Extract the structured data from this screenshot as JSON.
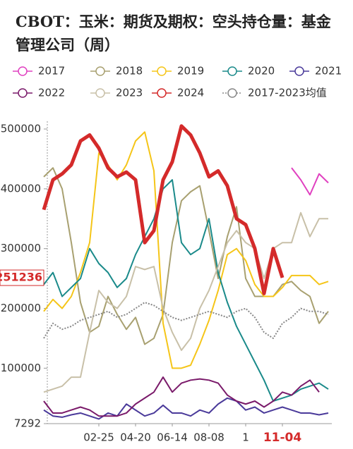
{
  "chart_data": {
    "type": "line",
    "title": "CBOT：玉米：期货及期权：空头持仓量：基金管理公司（周）",
    "categories": [
      null,
      null,
      null,
      null,
      null,
      null,
      "02-25",
      null,
      null,
      null,
      "04-20",
      null,
      null,
      null,
      "06-14",
      null,
      null,
      null,
      "08-08",
      null,
      null,
      null,
      "1",
      null,
      null,
      null,
      "11-04",
      null,
      null,
      null,
      null,
      null
    ],
    "ylim": [
      7292,
      513000
    ],
    "yticks": [
      7292,
      100000,
      200000,
      300000,
      400000,
      500000
    ],
    "series": [
      {
        "name": "2017",
        "color": "#e040c0",
        "values": [
          null,
          null,
          null,
          null,
          null,
          null,
          null,
          null,
          null,
          null,
          null,
          null,
          null,
          null,
          null,
          null,
          null,
          null,
          null,
          null,
          null,
          null,
          null,
          null,
          null,
          null,
          null,
          435000,
          415000,
          390000,
          425000,
          410000
        ]
      },
      {
        "name": "2018",
        "color": "#a8a070",
        "values": [
          420000,
          435000,
          400000,
          310000,
          210000,
          160000,
          170000,
          220000,
          190000,
          165000,
          185000,
          140000,
          150000,
          190000,
          310000,
          380000,
          395000,
          405000,
          330000,
          250000,
          320000,
          370000,
          250000,
          220000,
          220000,
          220000,
          240000,
          245000,
          230000,
          220000,
          175000,
          195000
        ]
      },
      {
        "name": "2019",
        "color": "#f5c518",
        "values": [
          195000,
          215000,
          200000,
          220000,
          260000,
          310000,
          460000,
          440000,
          415000,
          440000,
          480000,
          495000,
          430000,
          175000,
          100000,
          100000,
          105000,
          140000,
          180000,
          230000,
          290000,
          300000,
          280000,
          240000,
          220000,
          220000,
          235000,
          255000,
          255000,
          255000,
          240000,
          245000
        ]
      },
      {
        "name": "2020",
        "color": "#1a8a8a",
        "values": [
          240000,
          260000,
          220000,
          235000,
          250000,
          300000,
          275000,
          260000,
          235000,
          250000,
          290000,
          320000,
          350000,
          400000,
          415000,
          310000,
          290000,
          300000,
          350000,
          260000,
          210000,
          170000,
          140000,
          110000,
          80000,
          45000,
          50000,
          55000,
          65000,
          70000,
          75000,
          65000
        ]
      },
      {
        "name": "2021",
        "color": "#4a3a9a",
        "values": [
          30000,
          20000,
          18000,
          22000,
          25000,
          20000,
          15000,
          25000,
          20000,
          40000,
          30000,
          20000,
          25000,
          38000,
          25000,
          25000,
          20000,
          30000,
          25000,
          40000,
          50000,
          45000,
          30000,
          35000,
          25000,
          30000,
          35000,
          30000,
          25000,
          25000,
          22000,
          25000
        ]
      },
      {
        "name": "2022",
        "color": "#7a1a6a",
        "values": [
          45000,
          25000,
          25000,
          30000,
          35000,
          30000,
          20000,
          20000,
          20000,
          25000,
          40000,
          50000,
          60000,
          85000,
          60000,
          75000,
          80000,
          82000,
          80000,
          75000,
          55000,
          45000,
          40000,
          45000,
          35000,
          45000,
          60000,
          55000,
          70000,
          80000,
          60000,
          null
        ]
      },
      {
        "name": "2023",
        "color": "#c8c0a8",
        "values": [
          60000,
          65000,
          70000,
          85000,
          85000,
          160000,
          230000,
          210000,
          200000,
          220000,
          270000,
          265000,
          270000,
          200000,
          160000,
          130000,
          150000,
          200000,
          230000,
          270000,
          310000,
          330000,
          310000,
          300000,
          250000,
          300000,
          310000,
          310000,
          360000,
          320000,
          350000,
          350000
        ]
      },
      {
        "name": "2024",
        "color": "#d42a2a",
        "width": 5,
        "values": [
          365000,
          415000,
          425000,
          440000,
          480000,
          490000,
          468000,
          435000,
          420000,
          428000,
          415000,
          310000,
          330000,
          415000,
          445000,
          505000,
          490000,
          460000,
          420000,
          430000,
          405000,
          350000,
          340000,
          300000,
          225000,
          300000,
          251236,
          null,
          null,
          null,
          null,
          null
        ],
        "value_labels": [
          null,
          null,
          null,
          null,
          null,
          null,
          null,
          null,
          null,
          null,
          null,
          null,
          null,
          null,
          null,
          null,
          null,
          null,
          null,
          null,
          null,
          null,
          null,
          null,
          null,
          null,
          "251236",
          null,
          null,
          null,
          null,
          null
        ]
      },
      {
        "name": "2017-2023均值",
        "color": "#888888",
        "line_style": "dotted",
        "values": [
          150000,
          175000,
          165000,
          170000,
          180000,
          185000,
          190000,
          195000,
          185000,
          190000,
          200000,
          210000,
          205000,
          195000,
          185000,
          180000,
          185000,
          190000,
          195000,
          190000,
          185000,
          195000,
          200000,
          185000,
          160000,
          150000,
          175000,
          185000,
          200000,
          195000,
          195000,
          190000
        ]
      }
    ]
  }
}
